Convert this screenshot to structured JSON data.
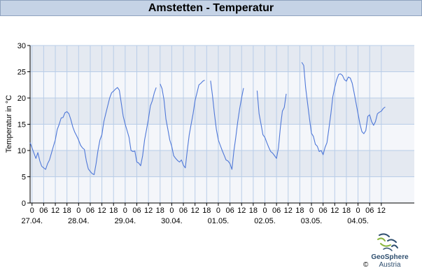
{
  "header": {
    "title": "Amstetten - Temperatur"
  },
  "branding": {
    "name": "GeoSphere",
    "subname": "Austria",
    "copyright": "©"
  },
  "colors": {
    "line": "#4f78d8",
    "band_dark": "#e4e9f1",
    "band_light": "#f4f6fa",
    "gridline": "#b9cde8",
    "axis": "#000000"
  },
  "chart_data": {
    "type": "line",
    "title": "Amstetten - Temperatur",
    "ylabel": "Temperatur in °C",
    "ylim": [
      0,
      30
    ],
    "yticks": [
      0,
      5,
      10,
      15,
      20,
      25,
      30
    ],
    "x_unit": "hours since 27.04. 00:00",
    "xlim": [
      -1,
      197
    ],
    "hour_ticks": [
      "0",
      "06",
      "12",
      "18",
      "0",
      "06",
      "12",
      "18",
      "0",
      "06",
      "12",
      "18",
      "0",
      "06",
      "12",
      "18",
      "0",
      "06",
      "12",
      "18",
      "0",
      "06",
      "12",
      "18",
      "0",
      "06",
      "12",
      "18",
      "0",
      "06",
      "12"
    ],
    "date_labels": [
      "27.04.",
      "28.04.",
      "29.04.",
      "30.04.",
      "01.05.",
      "02.05.",
      "03.05.",
      "04.05."
    ],
    "grid": true,
    "series": [
      {
        "segments": [
          [
            [
              -1,
              11.5
            ],
            [
              0,
              10.5
            ],
            [
              1,
              9.5
            ],
            [
              2,
              8.5
            ],
            [
              3,
              9.6
            ],
            [
              4,
              8
            ],
            [
              5,
              7
            ],
            [
              6,
              6.7
            ],
            [
              7,
              6.4
            ],
            [
              8,
              7.5
            ],
            [
              9,
              8.2
            ],
            [
              10,
              9.5
            ],
            [
              11,
              10.8
            ],
            [
              12,
              12
            ],
            [
              13,
              14
            ],
            [
              14,
              15
            ],
            [
              15,
              16.2
            ],
            [
              16,
              16.3
            ],
            [
              17,
              17.2
            ],
            [
              18,
              17.4
            ],
            [
              19,
              17
            ],
            [
              20,
              15.9
            ],
            [
              21,
              14.5
            ],
            [
              22,
              13.5
            ],
            [
              23,
              12.8
            ],
            [
              24,
              12
            ],
            [
              25,
              11
            ],
            [
              26,
              10.5
            ],
            [
              27,
              10.2
            ],
            [
              28,
              8
            ],
            [
              29,
              6.5
            ],
            [
              30,
              6
            ],
            [
              31,
              5.6
            ],
            [
              32,
              5.4
            ],
            [
              33,
              7.5
            ],
            [
              34,
              10
            ],
            [
              35,
              12
            ],
            [
              36,
              13
            ],
            [
              37,
              15.5
            ],
            [
              38,
              17
            ],
            [
              39,
              18.5
            ],
            [
              40,
              20
            ],
            [
              41,
              21
            ],
            [
              42,
              21.3
            ],
            [
              43,
              21.7
            ],
            [
              44,
              22
            ],
            [
              45,
              21.5
            ],
            [
              46,
              19
            ],
            [
              47,
              16.5
            ],
            [
              48,
              15
            ],
            [
              49,
              13.8
            ],
            [
              50,
              12.5
            ],
            [
              51,
              10
            ],
            [
              52,
              9.8
            ],
            [
              53,
              9.9
            ],
            [
              54,
              7.8
            ],
            [
              55,
              7.6
            ],
            [
              56,
              7.1
            ],
            [
              57,
              9
            ],
            [
              58,
              12
            ],
            [
              59,
              14
            ],
            [
              60,
              16
            ],
            [
              61,
              18.5
            ],
            [
              62,
              19.5
            ],
            [
              63,
              21
            ],
            [
              64,
              22
            ]
          ],
          [
            [
              66,
              22.7
            ],
            [
              67,
              21.8
            ],
            [
              68,
              19.7
            ],
            [
              69,
              16
            ],
            [
              70,
              14
            ],
            [
              71,
              12
            ],
            [
              72,
              10.8
            ],
            [
              73,
              9
            ],
            [
              74,
              8.5
            ],
            [
              75,
              8.1
            ],
            [
              76,
              7.8
            ],
            [
              77,
              8.2
            ],
            [
              78,
              7.2
            ],
            [
              79,
              6.7
            ],
            [
              80,
              10
            ],
            [
              81,
              13
            ],
            [
              82,
              15
            ],
            [
              83,
              17
            ],
            [
              84,
              19.5
            ],
            [
              85,
              21
            ],
            [
              86,
              22.5
            ],
            [
              87,
              22.8
            ],
            [
              88,
              23.2
            ],
            [
              89,
              23.4
            ]
          ],
          [
            [
              92,
              23.3
            ],
            [
              93,
              20.5
            ],
            [
              94,
              17
            ],
            [
              95,
              14
            ],
            [
              96,
              12
            ],
            [
              97,
              11
            ],
            [
              98,
              10
            ],
            [
              99,
              9.1
            ],
            [
              100,
              8.2
            ],
            [
              101,
              8
            ],
            [
              102,
              7.5
            ],
            [
              103,
              6.4
            ],
            [
              104,
              9.8
            ],
            [
              105,
              12.5
            ],
            [
              106,
              15.5
            ],
            [
              107,
              18
            ],
            [
              108,
              20
            ],
            [
              109,
              21.9
            ]
          ],
          [
            [
              116,
              21.4
            ],
            [
              117,
              17
            ],
            [
              118,
              15
            ],
            [
              119,
              13
            ],
            [
              120,
              12.5
            ],
            [
              121,
              11.5
            ],
            [
              122,
              10.6
            ],
            [
              123,
              9.8
            ],
            [
              124,
              9.5
            ],
            [
              125,
              9
            ],
            [
              126,
              8.5
            ],
            [
              127,
              10.5
            ],
            [
              128,
              14.5
            ],
            [
              129,
              17.5
            ],
            [
              130,
              18.2
            ],
            [
              131,
              20.8
            ]
          ],
          [
            [
              139,
              26.8
            ],
            [
              140,
              26.2
            ],
            [
              141,
              22
            ],
            [
              142,
              19
            ],
            [
              143,
              16
            ],
            [
              144,
              13.3
            ],
            [
              145,
              12.7
            ],
            [
              146,
              11.2
            ],
            [
              147,
              10.8
            ],
            [
              148,
              9.8
            ],
            [
              149,
              10
            ],
            [
              150,
              9.2
            ],
            [
              151,
              10.6
            ],
            [
              152,
              11.5
            ],
            [
              153,
              14.2
            ],
            [
              154,
              17
            ],
            [
              155,
              20.2
            ],
            [
              156,
              22
            ],
            [
              157,
              23.5
            ],
            [
              158,
              24.5
            ],
            [
              159,
              24.6
            ],
            [
              160,
              24.3
            ],
            [
              161,
              23.5
            ],
            [
              162,
              23.2
            ],
            [
              163,
              24
            ],
            [
              164,
              23.8
            ],
            [
              165,
              22.8
            ],
            [
              166,
              21
            ],
            [
              167,
              19
            ],
            [
              168,
              17
            ],
            [
              169,
              15
            ],
            [
              170,
              13.6
            ],
            [
              171,
              13.2
            ],
            [
              172,
              13.8
            ],
            [
              173,
              16.5
            ],
            [
              174,
              16.8
            ],
            [
              175,
              15.5
            ],
            [
              176,
              14.8
            ],
            [
              177,
              15.5
            ],
            [
              178,
              17
            ],
            [
              179,
              17.3
            ],
            [
              180,
              17.5
            ],
            [
              181,
              18
            ],
            [
              182,
              18.3
            ]
          ]
        ]
      }
    ]
  }
}
